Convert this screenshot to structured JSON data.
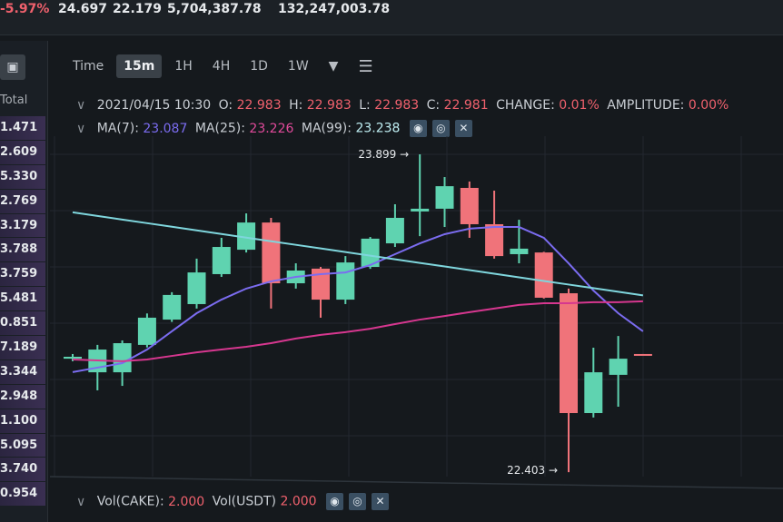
{
  "ticker": {
    "change": "-5.97%",
    "high": "24.697",
    "low": "22.179",
    "vol_base": "5,704,387.78",
    "vol_quote": "132,247,003.78"
  },
  "order_book": {
    "header": "Total",
    "icon": "order-book-icon",
    "rows": [
      "1.471",
      "2.609",
      "5.330",
      "2.769",
      "3.179",
      "3.788",
      "3.759",
      "5.481",
      "0.851",
      "7.189",
      "3.344",
      "2.948",
      "1.100",
      "5.095",
      "3.740",
      "0.954"
    ]
  },
  "toolbar": {
    "intervals": [
      "Time",
      "15m",
      "1H",
      "4H",
      "1D",
      "1W"
    ],
    "active": "15m",
    "more_icon": "caret-down-icon",
    "settings_icon": "sliders-icon"
  },
  "ohlc": {
    "date": "2021/04/15 10:30",
    "o_label": "O:",
    "o": "22.983",
    "h_label": "H:",
    "h": "22.983",
    "l_label": "L:",
    "l": "22.983",
    "c_label": "C:",
    "c": "22.981",
    "change_label": "CHANGE:",
    "change": "0.01%",
    "amp_label": "AMPLITUDE:",
    "amp": "0.00%"
  },
  "ma_legend": {
    "ma7_label": "MA(7):",
    "ma7": "23.087",
    "ma25_label": "MA(25):",
    "ma25": "23.226",
    "ma99_label": "MA(99):",
    "ma99": "23.238"
  },
  "vol_legend": {
    "cake_label": "Vol(CAKE):",
    "cake": "2.000",
    "usdt_label": "Vol(USDT)",
    "usdt": "2.000"
  },
  "colors": {
    "up": "#5fd3b0",
    "down": "#f0737a",
    "ma7": "#7b6cf0",
    "ma25": "#d6378f",
    "ma99": "#7fd6dd",
    "background": "#15191d"
  },
  "chart_data": {
    "type": "candlestick",
    "title": "",
    "annotations": [
      {
        "text": "23.899",
        "price": 23.899,
        "candle": 14
      },
      {
        "text": "22.403",
        "price": 22.403,
        "candle": 20
      }
    ],
    "candles": [
      {
        "o": 22.937,
        "h": 22.959,
        "l": 22.925,
        "c": 22.946
      },
      {
        "o": 22.873,
        "h": 23.002,
        "l": 22.788,
        "c": 22.98
      },
      {
        "o": 22.873,
        "h": 23.023,
        "l": 22.809,
        "c": 23.01
      },
      {
        "o": 23.002,
        "h": 23.15,
        "l": 22.99,
        "c": 23.13
      },
      {
        "o": 23.121,
        "h": 23.25,
        "l": 23.11,
        "c": 23.237
      },
      {
        "o": 23.194,
        "h": 23.408,
        "l": 23.173,
        "c": 23.343
      },
      {
        "o": 23.335,
        "h": 23.506,
        "l": 23.322,
        "c": 23.463
      },
      {
        "o": 23.45,
        "h": 23.621,
        "l": 23.437,
        "c": 23.578
      },
      {
        "o": 23.578,
        "h": 23.6,
        "l": 23.173,
        "c": 23.292
      },
      {
        "o": 23.292,
        "h": 23.386,
        "l": 23.267,
        "c": 23.352
      },
      {
        "o": 23.361,
        "h": 23.369,
        "l": 23.13,
        "c": 23.215
      },
      {
        "o": 23.215,
        "h": 23.42,
        "l": 23.194,
        "c": 23.39
      },
      {
        "o": 23.369,
        "h": 23.51,
        "l": 23.36,
        "c": 23.502
      },
      {
        "o": 23.48,
        "h": 23.664,
        "l": 23.463,
        "c": 23.6
      },
      {
        "o": 23.63,
        "h": 23.899,
        "l": 23.514,
        "c": 23.643
      },
      {
        "o": 23.643,
        "h": 23.792,
        "l": 23.557,
        "c": 23.749
      },
      {
        "o": 23.741,
        "h": 23.771,
        "l": 23.506,
        "c": 23.57
      },
      {
        "o": 23.57,
        "h": 23.728,
        "l": 23.408,
        "c": 23.42
      },
      {
        "o": 23.429,
        "h": 23.591,
        "l": 23.386,
        "c": 23.455
      },
      {
        "o": 23.437,
        "h": 23.44,
        "l": 23.22,
        "c": 23.224
      },
      {
        "o": 23.245,
        "h": 23.267,
        "l": 22.403,
        "c": 22.681
      },
      {
        "o": 22.681,
        "h": 22.989,
        "l": 22.66,
        "c": 22.873
      },
      {
        "o": 22.861,
        "h": 23.044,
        "l": 22.711,
        "c": 22.937
      },
      {
        "o": 22.959,
        "h": 22.959,
        "l": 22.955,
        "c": 22.955
      }
    ],
    "series": [
      {
        "name": "MA(7)",
        "values": [
          22.874,
          22.895,
          22.916,
          22.98,
          23.066,
          23.151,
          23.215,
          23.267,
          23.301,
          23.322,
          23.335,
          23.343,
          23.378,
          23.429,
          23.48,
          23.523,
          23.549,
          23.557,
          23.557,
          23.506,
          23.386,
          23.258,
          23.151,
          23.066
        ]
      },
      {
        "name": "MA(25)",
        "values": [
          22.933,
          22.929,
          22.925,
          22.933,
          22.95,
          22.967,
          22.98,
          22.993,
          23.01,
          23.032,
          23.049,
          23.062,
          23.078,
          23.1,
          23.121,
          23.138,
          23.156,
          23.173,
          23.19,
          23.198,
          23.198,
          23.203,
          23.203,
          23.207
        ]
      },
      {
        "name": "MA(99)",
        "values": [
          23.626,
          23.609,
          23.592,
          23.575,
          23.558,
          23.541,
          23.524,
          23.507,
          23.49,
          23.473,
          23.456,
          23.439,
          23.422,
          23.405,
          23.388,
          23.371,
          23.354,
          23.337,
          23.32,
          23.303,
          23.286,
          23.269,
          23.252,
          23.235
        ]
      }
    ],
    "grid": true
  }
}
